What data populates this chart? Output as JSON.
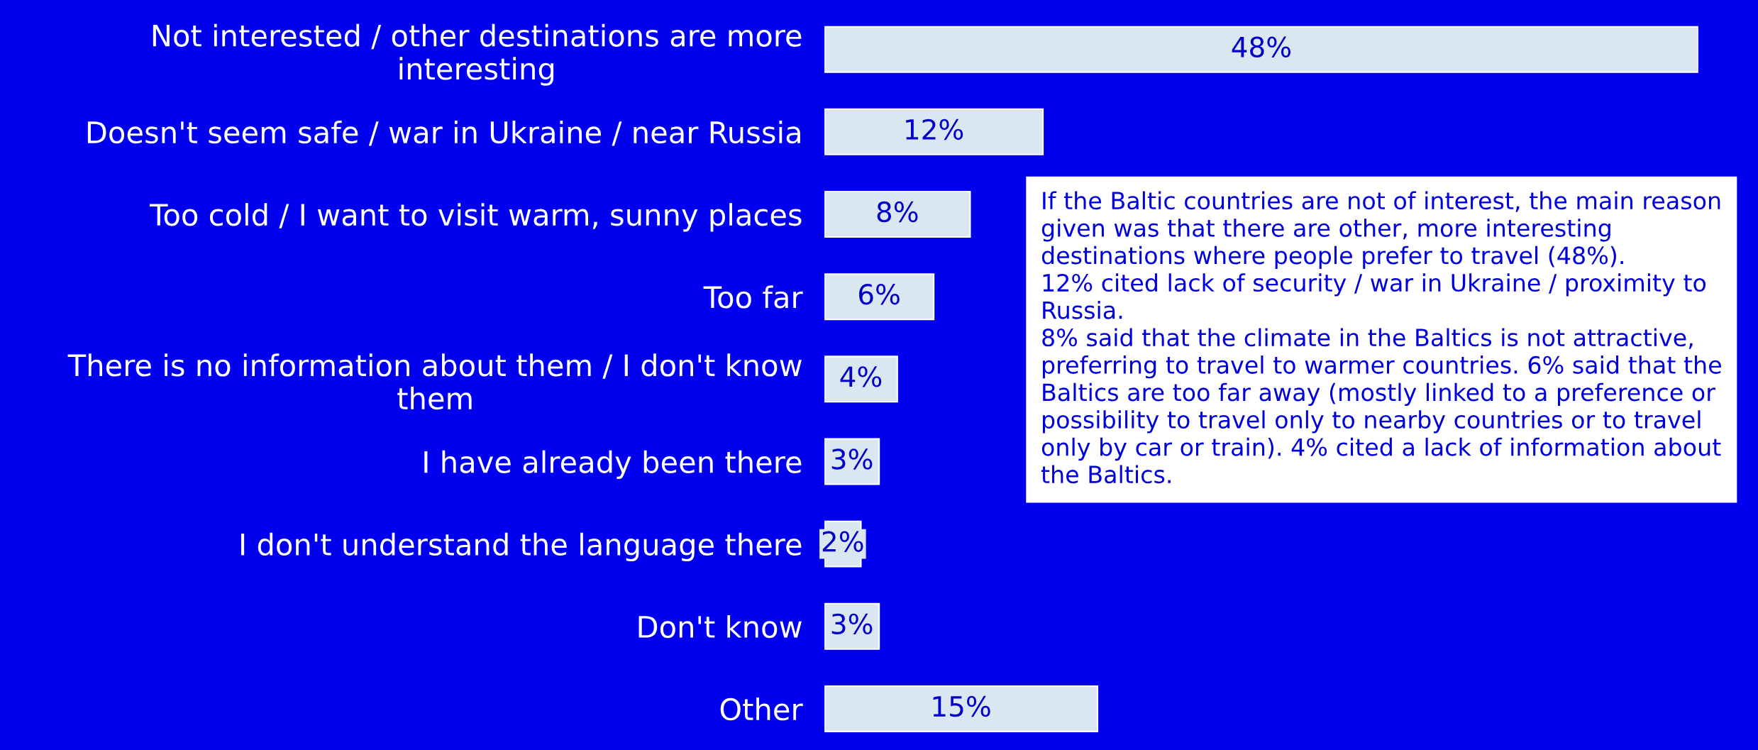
{
  "chart_data": {
    "type": "bar",
    "orientation": "horizontal",
    "categories": [
      "Not interested / other destinations are more interesting",
      "Doesn't seem safe / war in Ukraine / near Russia",
      "Too cold / I want to visit warm, sunny places",
      "Too far",
      "There is no information about them / I don't know them",
      "I have already been there",
      "I don't understand the language there",
      "Don't know",
      "Other"
    ],
    "values": [
      48,
      12,
      8,
      6,
      4,
      3,
      2,
      3,
      15
    ],
    "color": "#dae6f0",
    "value_labels": [
      "48%",
      "12%",
      "8%",
      "6%",
      "4%",
      "3%",
      "2%",
      "3%",
      "15%"
    ],
    "annotations": [
      "If the Baltic countries are not of interest, the main reason given was that there are other, more interesting destinations where people prefer to travel (48%).\n12% cited lack of security / war in Ukraine / proximity to Russia.\n8% said that the climate in the Baltics is not attractive, preferring to travel to warmer countries. 6% said that the Baltics are too far away (mostly linked to a preference or possibility to travel only to nearby countries or to travel only by car or train). 4% cited a lack of information about the Baltics."
    ],
    "grid": false,
    "legend": false
  }
}
